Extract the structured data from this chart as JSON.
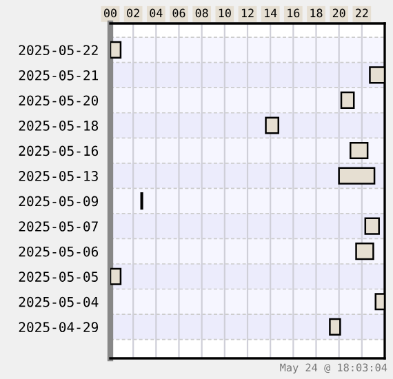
{
  "chart_data": {
    "type": "bar",
    "orientation": "horizontal",
    "categories": [
      "2025-05-22",
      "2025-05-21",
      "2025-05-20",
      "2025-05-18",
      "2025-05-16",
      "2025-05-13",
      "2025-05-09",
      "2025-05-07",
      "2025-05-06",
      "2025-05-05",
      "2025-05-04",
      "2025-04-29"
    ],
    "base": [
      0,
      22.7,
      20.2,
      13.6,
      21.0,
      20.0,
      2.7,
      22.3,
      21.5,
      0,
      23.2,
      19.2
    ],
    "values": [
      0.9,
      1.3,
      1.1,
      1.1,
      1.5,
      3.1,
      0.1,
      1.2,
      1.5,
      0.9,
      0.8,
      0.9
    ],
    "color": "#e6dfd2",
    "xlim": [
      0,
      24
    ],
    "xticks": [
      {
        "value": 0,
        "label": "00"
      },
      {
        "value": 2,
        "label": "02"
      },
      {
        "value": 4,
        "label": "04"
      },
      {
        "value": 6,
        "label": "06"
      },
      {
        "value": 8,
        "label": "08"
      },
      {
        "value": 10,
        "label": "10"
      },
      {
        "value": 12,
        "label": "12"
      },
      {
        "value": 14,
        "label": "14"
      },
      {
        "value": 16,
        "label": "16"
      },
      {
        "value": 18,
        "label": "18"
      },
      {
        "value": 20,
        "label": "20"
      },
      {
        "value": 22,
        "label": "22"
      }
    ],
    "grid": "x",
    "annotations": [
      "May 24 @ 18:03:04"
    ]
  }
}
